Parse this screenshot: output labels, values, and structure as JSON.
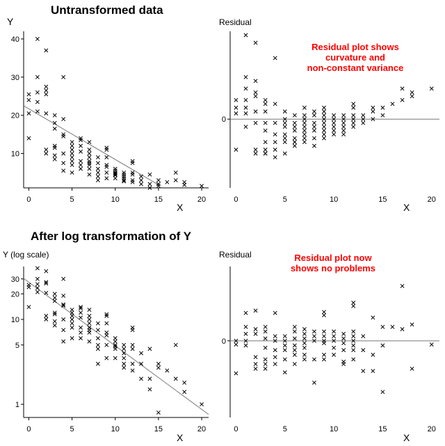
{
  "panels": {
    "top_title": "Untransformed data",
    "bottom_title": "After log transformation of Y",
    "p1": {
      "ylabel": "Y",
      "xlabel": "X",
      "xticks": [
        "0",
        "5",
        "10",
        "15",
        "20"
      ],
      "yticks": [
        "10",
        "20",
        "30",
        "40"
      ]
    },
    "p2": {
      "ylabel": "Residual",
      "xlabel": "X",
      "xticks": [
        "0",
        "5",
        "10",
        "15",
        "20"
      ],
      "yticks": [
        "0"
      ],
      "note": [
        "Residual plot shows",
        "curvature and",
        "non-constant variance"
      ]
    },
    "p3": {
      "ylabel": "Y (log scale)",
      "xlabel": "X",
      "xticks": [
        "0",
        "5",
        "10",
        "15",
        "20"
      ],
      "yticks": [
        "1",
        "5",
        "10",
        "20",
        "30"
      ]
    },
    "p4": {
      "ylabel": "Residual",
      "xlabel": "X",
      "xticks": [
        "0",
        "5",
        "10",
        "15",
        "20"
      ],
      "yticks": [
        "0"
      ],
      "note": [
        "Residual plot now",
        "shows no problems"
      ]
    }
  },
  "chart_data": [
    {
      "type": "scatter",
      "title": "Untransformed data",
      "xlabel": "X",
      "ylabel": "Y",
      "xlim": [
        -0.6,
        20.8
      ],
      "ylim": [
        1,
        42
      ],
      "fit_line": {
        "x": [
          -0.6,
          15
        ],
        "y": [
          22.5,
          1.8
        ]
      },
      "x": [
        0,
        0,
        0,
        0,
        1,
        1,
        1,
        1,
        1,
        2,
        2,
        2,
        2,
        2,
        2,
        2,
        3,
        3,
        3,
        3,
        3,
        3,
        3,
        4,
        4,
        4,
        4,
        4,
        4,
        4,
        5,
        5,
        5,
        5,
        5,
        5,
        5,
        5,
        6,
        6,
        6,
        6,
        6,
        6,
        6,
        7,
        7,
        7,
        7,
        7,
        7,
        7,
        7,
        7,
        8,
        8,
        8,
        8,
        8,
        8,
        9,
        9,
        9,
        9,
        9,
        9,
        9,
        10,
        10,
        10,
        10,
        10,
        10,
        10,
        11,
        11,
        11,
        11,
        11,
        11,
        12,
        12,
        12,
        12,
        12,
        12,
        13,
        13,
        13,
        14,
        14,
        14,
        15,
        15,
        15,
        16,
        17,
        17,
        18,
        18,
        20
      ],
      "y": [
        25.5,
        24,
        20.5,
        14,
        40,
        30,
        26,
        23.5,
        21,
        37,
        27.5,
        26.5,
        25.5,
        20.5,
        11,
        10,
        20,
        18,
        16.5,
        12,
        11.5,
        9.5,
        8.5,
        30,
        19,
        15,
        14.5,
        10,
        7.5,
        5.5,
        13,
        12,
        11,
        10,
        9,
        8,
        7,
        5,
        14,
        13.5,
        12,
        10.5,
        8,
        7,
        6,
        13,
        11,
        10,
        9,
        8,
        7.5,
        7,
        6,
        4.5,
        9,
        7.5,
        6,
        5,
        4,
        3,
        11.5,
        11,
        9,
        7,
        6.5,
        5,
        3.5,
        6,
        5.5,
        5,
        4.8,
        4.5,
        4.3,
        3.5,
        5,
        4.5,
        4,
        3.5,
        3,
        2.7,
        8,
        7.5,
        5,
        4.5,
        3,
        2.5,
        4,
        3,
        2,
        4.5,
        2,
        1,
        3,
        2,
        1.5,
        2.5,
        5,
        3,
        2.5,
        1.8,
        1.5
      ]
    },
    {
      "type": "scatter",
      "title": "",
      "xlabel": "X",
      "ylabel": "Residual",
      "xlim": [
        -0.6,
        20.8
      ],
      "ylim": [
        -18,
        23
      ],
      "reference_line_y": 0,
      "x": [
        0,
        0,
        0,
        0,
        1,
        1,
        1,
        1,
        1,
        1,
        1,
        2,
        2,
        2,
        2,
        2,
        2,
        2,
        2,
        3,
        3,
        3,
        3,
        3,
        3,
        3,
        3,
        3,
        4,
        4,
        4,
        4,
        4,
        4,
        4,
        5,
        5,
        5,
        5,
        5,
        5,
        5,
        5,
        6,
        6,
        6,
        6,
        6,
        6,
        6,
        6,
        7,
        7,
        7,
        7,
        7,
        7,
        7,
        7,
        7,
        8,
        8,
        8,
        8,
        8,
        8,
        8,
        9,
        9,
        9,
        9,
        9,
        9,
        9,
        9,
        9,
        10,
        10,
        10,
        10,
        10,
        10,
        11,
        11,
        11,
        11,
        11,
        11,
        12,
        12,
        12,
        12,
        12,
        12,
        13,
        13,
        13,
        14,
        14,
        14,
        15,
        15,
        16,
        17,
        17,
        18,
        18,
        20
      ],
      "y": [
        5,
        3,
        1.5,
        -8,
        22,
        11,
        8,
        5,
        3,
        1.5,
        -2,
        20,
        10,
        7,
        6,
        2,
        -1,
        -8,
        -9,
        5,
        4,
        2,
        -1,
        -3,
        -6,
        -8,
        -9,
        -9,
        16,
        4,
        -1,
        -4,
        -6,
        -8,
        -10,
        2,
        0,
        -1,
        -2,
        -4,
        -5,
        -6,
        -9,
        1,
        -1,
        -2,
        -3,
        -5,
        -6,
        -6,
        -7,
        3,
        1,
        0,
        -1,
        -2,
        -3,
        -4,
        -5,
        -6,
        2,
        1,
        -1,
        -2,
        -3,
        -5,
        -7,
        3,
        2,
        1,
        0,
        -1,
        -2,
        -3,
        -4,
        -5,
        1,
        0,
        -1,
        -2,
        -3,
        -4,
        1,
        0,
        -1,
        -2,
        -3,
        -4,
        4,
        3,
        1,
        0,
        -1,
        -2,
        1,
        0,
        -1,
        3,
        2,
        0,
        3,
        1,
        4,
        8,
        5,
        7,
        6,
        8
      ]
    },
    {
      "type": "scatter",
      "title": "After log transformation of Y",
      "xlabel": "X",
      "ylabel": "Y (log scale)",
      "y_scale": "log",
      "xlim": [
        -0.6,
        20.8
      ],
      "ylim": [
        0.7,
        42
      ],
      "fit_line": {
        "x": [
          -0.6,
          20.8
        ],
        "y": [
          30.4,
          0.76
        ]
      },
      "x": [
        0,
        0,
        0,
        1,
        1,
        1,
        1,
        1,
        2,
        2,
        2,
        2,
        2,
        2,
        3,
        3,
        3,
        3,
        3,
        3,
        3,
        4,
        4,
        4,
        4,
        4,
        4,
        4,
        5,
        5,
        5,
        5,
        5,
        5,
        5,
        6,
        6,
        6,
        6,
        6,
        6,
        6,
        7,
        7,
        7,
        7,
        7,
        7,
        7,
        7,
        8,
        8,
        8,
        8,
        8,
        8,
        9,
        9,
        9,
        9,
        9,
        9,
        9,
        10,
        10,
        10,
        10,
        10,
        10,
        11,
        11,
        11,
        11,
        11,
        11,
        12,
        12,
        12,
        12,
        12,
        12,
        13,
        13,
        13,
        14,
        14,
        14,
        15,
        15,
        15,
        16,
        17,
        17,
        18,
        18,
        20
      ],
      "y": [
        25.5,
        24,
        14,
        40,
        30,
        26,
        23.5,
        21,
        37,
        27.5,
        26.5,
        20.5,
        11,
        10,
        20,
        18,
        16.5,
        12,
        11.5,
        9.5,
        8.5,
        30,
        19,
        15,
        14.5,
        10,
        7.5,
        5.5,
        13,
        12,
        11,
        10,
        9,
        8,
        6,
        14,
        13.5,
        12,
        10.5,
        8,
        7,
        6,
        13,
        11,
        10,
        9,
        8,
        7.5,
        7,
        5.5,
        9,
        7.5,
        6,
        5,
        4.5,
        3,
        11.5,
        11,
        9,
        7,
        6.5,
        5,
        3.5,
        6,
        5.5,
        5,
        4.8,
        4.5,
        3.5,
        5,
        4.5,
        4,
        3.5,
        3,
        2.7,
        8,
        7.5,
        5,
        4.5,
        3,
        2.5,
        4,
        3,
        2,
        4.5,
        2,
        1.5,
        3,
        2.7,
        0.8,
        2.5,
        5,
        2,
        1.8,
        1.4,
        1
      ]
    },
    {
      "type": "scatter",
      "title": "",
      "xlabel": "X",
      "ylabel": "Residual",
      "xlim": [
        -0.6,
        20.8
      ],
      "ylim": [
        -1.65,
        1.6
      ],
      "reference_line_y": 0,
      "x": [
        0,
        0,
        0,
        1,
        1,
        1,
        1,
        1,
        2,
        2,
        2,
        2,
        2,
        2,
        3,
        3,
        3,
        3,
        3,
        3,
        3,
        4,
        4,
        4,
        4,
        4,
        4,
        5,
        5,
        5,
        5,
        5,
        5,
        6,
        6,
        6,
        6,
        6,
        6,
        6,
        7,
        7,
        7,
        7,
        7,
        7,
        7,
        8,
        8,
        8,
        8,
        8,
        9,
        9,
        9,
        9,
        9,
        9,
        9,
        9,
        10,
        10,
        10,
        10,
        10,
        11,
        11,
        11,
        11,
        11,
        11,
        12,
        12,
        12,
        12,
        12,
        12,
        12,
        12,
        13,
        13,
        13,
        14,
        14,
        14,
        15,
        15,
        15,
        16,
        17,
        17,
        18,
        18,
        20
      ],
      "y": [
        0,
        -0.08,
        -0.7,
        0.6,
        0.3,
        0.15,
        0,
        -0.1,
        0.65,
        0.25,
        0.15,
        -0.35,
        -0.5,
        -0.6,
        0.3,
        0.2,
        0.05,
        -0.15,
        -0.4,
        -0.5,
        -0.6,
        0.6,
        0.1,
        0,
        -0.2,
        -0.35,
        -0.5,
        0.1,
        0,
        -0.1,
        -0.2,
        -0.4,
        -0.68,
        0.3,
        0.2,
        0.05,
        -0.1,
        -0.2,
        -0.3,
        -0.5,
        0.25,
        0.15,
        0.05,
        -0.05,
        -0.15,
        -0.3,
        -0.4,
        0.2,
        0.1,
        0,
        -0.4,
        -0.9,
        0.62,
        0.55,
        0.2,
        0.1,
        0,
        -0.05,
        -0.3,
        -0.4,
        0.2,
        0.1,
        0,
        -0.15,
        -0.3,
        0.15,
        0.05,
        -0.05,
        -0.2,
        -0.45,
        -0.5,
        0.82,
        0.75,
        0.2,
        0.1,
        0,
        -0.1,
        -0.2,
        -0.4,
        0.1,
        -0.2,
        -0.65,
        0.5,
        -0.3,
        -0.65,
        0.3,
        -0.1,
        -1.1,
        0.3,
        1.18,
        0.25,
        0.35,
        -0.6,
        -0.08
      ]
    }
  ]
}
